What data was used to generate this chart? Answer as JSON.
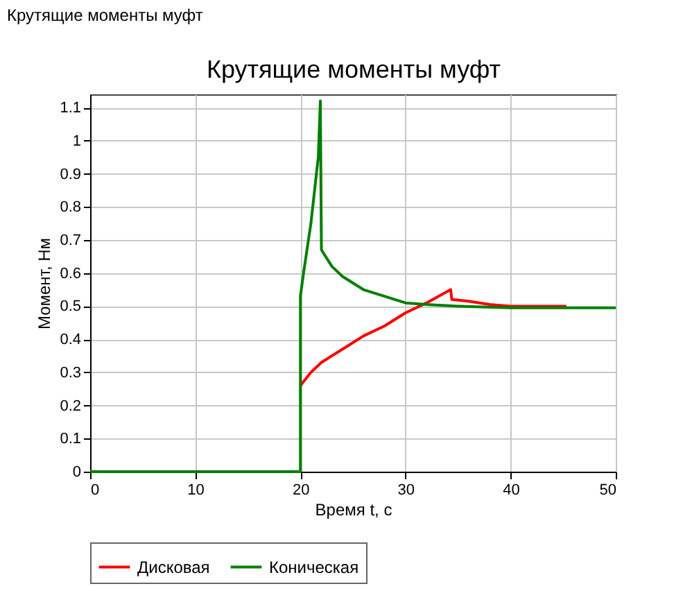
{
  "chart_data": {
    "type": "line",
    "title": "Крутящие моменты муфт",
    "xlabel": "Время t, с",
    "ylabel": "Момент, Нм",
    "annotations": [
      "Крутящие моменты муфт"
    ],
    "xlim": [
      0,
      50
    ],
    "xticks": [
      0,
      10,
      20,
      30,
      40,
      50
    ],
    "ylim": [
      0,
      1.14
    ],
    "yticks": [
      0,
      0.1,
      0.2,
      0.3,
      0.4,
      0.5,
      0.6,
      0.7,
      0.8,
      0.9,
      1,
      1.1
    ],
    "grid": true,
    "legend": "bottom",
    "marker": "none",
    "line_style": "solid",
    "series": [
      {
        "name": "Дисковая",
        "color": "#ff0000",
        "x": [
          20,
          21,
          22,
          24,
          26,
          28,
          30,
          32,
          34.3,
          34.4,
          36,
          38,
          40,
          45.3
        ],
        "values": [
          0.26,
          0.3,
          0.33,
          0.37,
          0.41,
          0.44,
          0.48,
          0.51,
          0.55,
          0.52,
          0.515,
          0.505,
          0.5,
          0.5
        ]
      },
      {
        "name": "Коническая",
        "color": "#008000",
        "x": [
          0,
          20,
          20,
          20.3,
          21,
          21.7,
          21.9,
          22,
          23,
          24,
          25,
          26,
          28,
          30,
          32,
          35,
          40,
          50
        ],
        "values": [
          0,
          0,
          0.53,
          0.6,
          0.75,
          0.95,
          1.12,
          0.67,
          0.62,
          0.59,
          0.57,
          0.55,
          0.53,
          0.51,
          0.505,
          0.5,
          0.495,
          0.495
        ]
      }
    ]
  }
}
